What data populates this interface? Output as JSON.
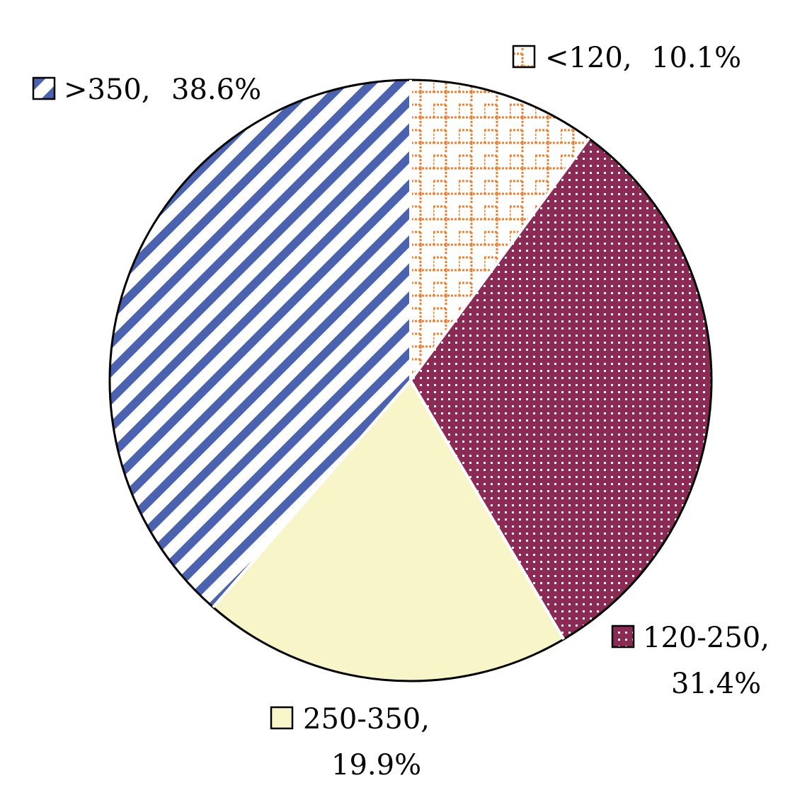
{
  "chart_data": {
    "type": "pie",
    "title": "",
    "start_angle_deg": 90,
    "direction": "clockwise",
    "slices": [
      {
        "category": "<120",
        "value": 10.1,
        "label_line1": "<120,",
        "label_line2": "10.1%",
        "pattern": "orange-brick",
        "color": "#F07F2E"
      },
      {
        "category": "120-250",
        "value": 31.4,
        "label_line1": "120-250,",
        "label_line2": "31.4%",
        "pattern": "maroon-dots",
        "color": "#8B2A55"
      },
      {
        "category": "250-350",
        "value": 19.9,
        "label_line1": "250-350,",
        "label_line2": "19.9%",
        "pattern": "solid",
        "color": "#F8F6C8"
      },
      {
        "category": ">350",
        "value": 38.6,
        "label_line1": ">350,",
        "label_line2": "38.6%",
        "pattern": "blue-diagonal-stripes",
        "color": "#4A62B0"
      }
    ]
  }
}
